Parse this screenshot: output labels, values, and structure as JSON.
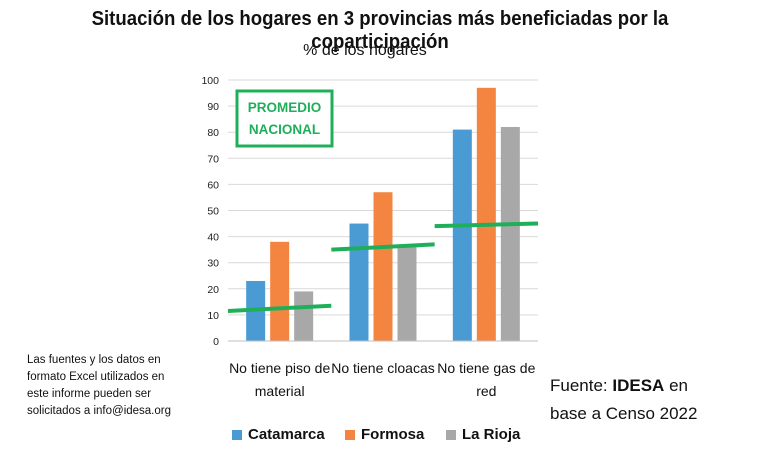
{
  "title": "Situación de los hogares en 3 provincias más beneficiadas por la coparticipación",
  "subtitle": "% de los hogares",
  "note_lines": [
    "Las fuentes y los datos en",
    "formato Excel utilizados en",
    "este informe pueden ser",
    "solicitados a info@idesa.org"
  ],
  "source": {
    "prefix": "Fuente: ",
    "bold": "IDESA",
    "suffix": " en",
    "line2": "base a Censo 2022"
  },
  "colors": {
    "catamarca": "#4A9BD4",
    "formosa": "#F48540",
    "la_rioja": "#A8A8A8",
    "promedio": "#1FAF5A",
    "grid": "#D9D9D9"
  },
  "chart_data": {
    "type": "bar",
    "title": "Situación de los hogares en 3 provincias más beneficiadas por la coparticipación",
    "ylabel": "% de los hogares",
    "xlabel": "",
    "ylim": [
      0,
      100
    ],
    "yticks": [
      0,
      10,
      20,
      30,
      40,
      50,
      60,
      70,
      80,
      90,
      100
    ],
    "categories": [
      [
        "No tiene piso de",
        "material"
      ],
      [
        "No tiene cloacas"
      ],
      [
        "No tiene gas de",
        "red"
      ]
    ],
    "series": [
      {
        "name": "Catamarca",
        "values": [
          23,
          45,
          81
        ]
      },
      {
        "name": "Formosa",
        "values": [
          38,
          57,
          97
        ]
      },
      {
        "name": "La Rioja",
        "values": [
          19,
          36,
          82
        ]
      }
    ],
    "promedio_nacional": {
      "label_lines": [
        "PROMEDIO",
        "NACIONAL"
      ],
      "segments": [
        [
          11.5,
          13.5
        ],
        [
          35,
          37
        ],
        [
          44,
          45
        ]
      ]
    },
    "legend_position": "bottom"
  }
}
